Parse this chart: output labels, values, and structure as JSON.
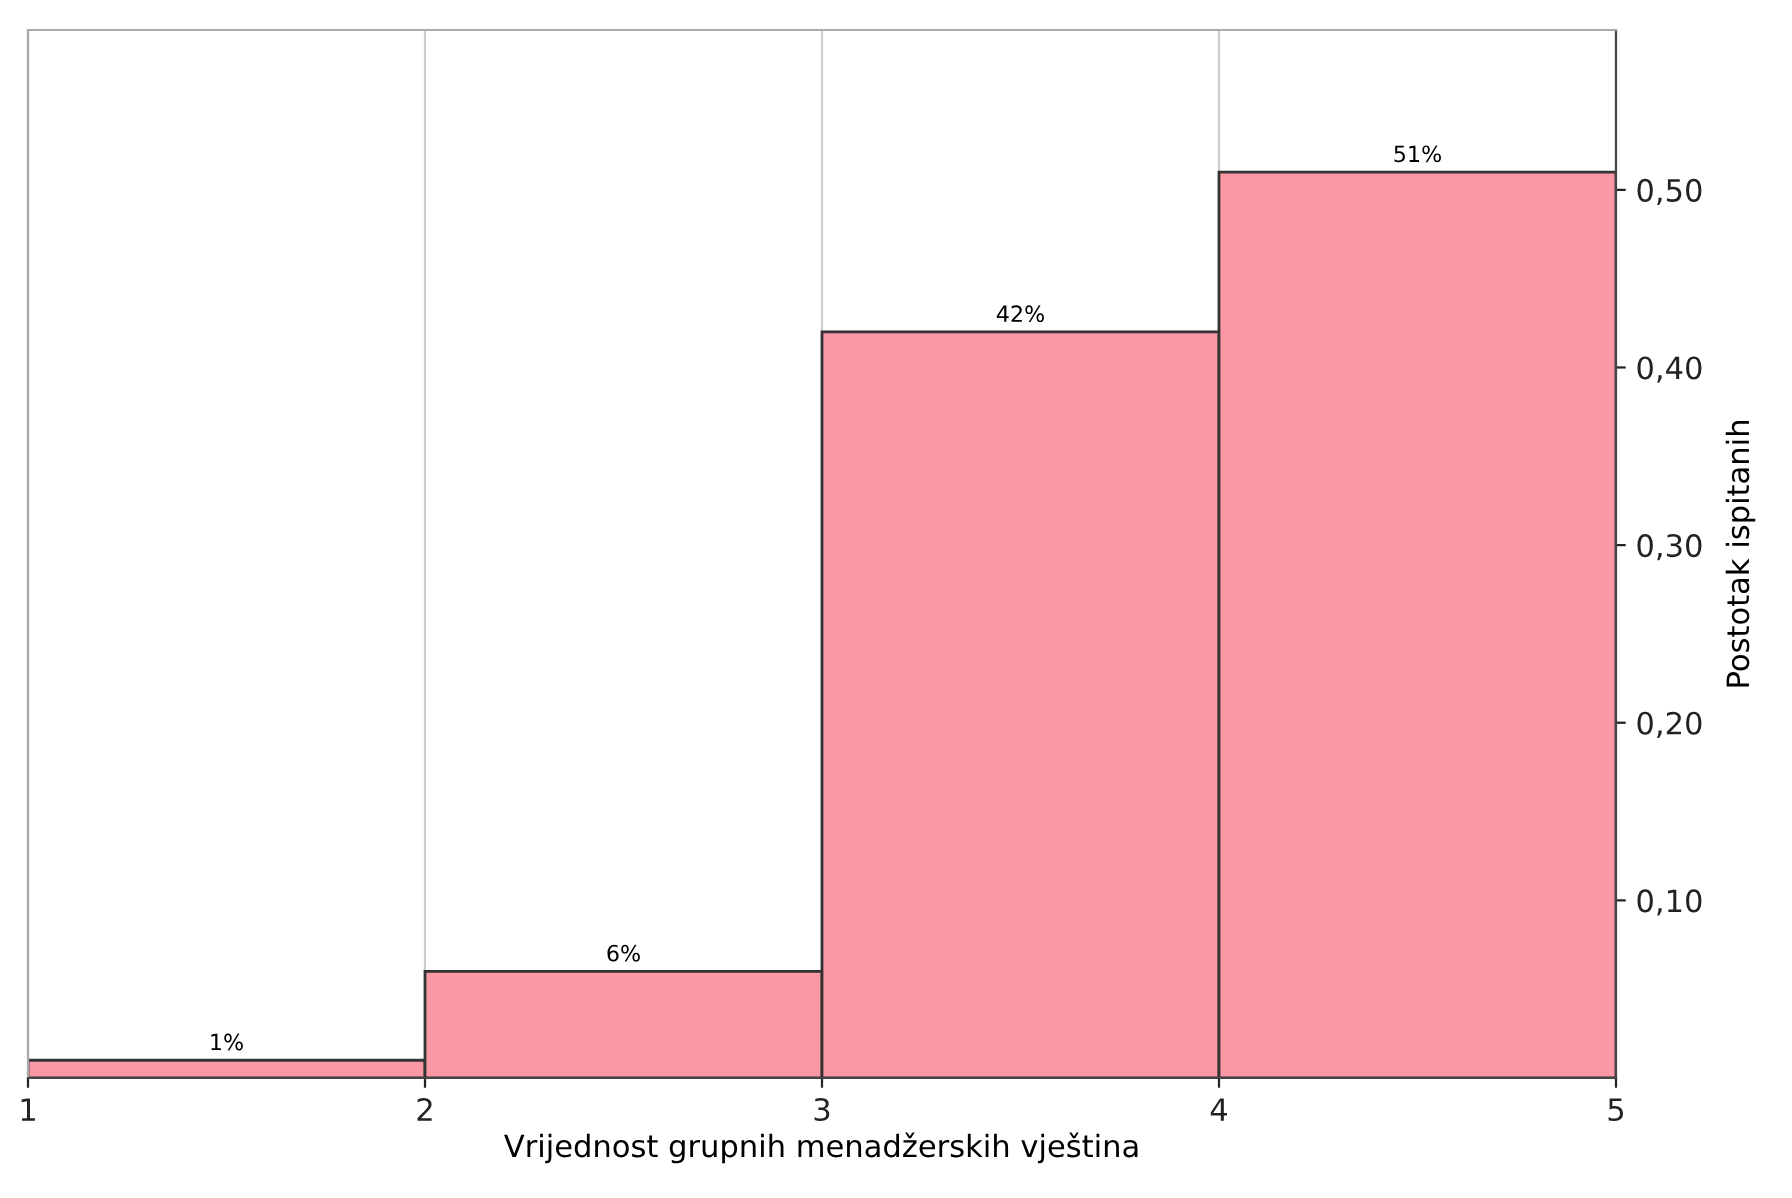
{
  "chart_data": {
    "type": "histogram",
    "xlabel": "Vrijednost grupnih menadžerskih vještina",
    "ylabel": "Postotak ispitanih",
    "bins": [
      1,
      2,
      3,
      4,
      5
    ],
    "values": [
      0.01,
      0.06,
      0.42,
      0.51
    ],
    "value_labels": [
      "1%",
      "6%",
      "42%",
      "51%"
    ],
    "color": "#fb98a6",
    "xlim": [
      1,
      5
    ],
    "ylim": [
      0,
      0.59
    ],
    "xticks": [
      1,
      2,
      3,
      4,
      5
    ],
    "yticks": [
      {
        "value": 0.1,
        "label": "0,10"
      },
      {
        "value": 0.2,
        "label": "0,20"
      },
      {
        "value": 0.3,
        "label": "0,30"
      },
      {
        "value": 0.4,
        "label": "0,40"
      },
      {
        "value": 0.5,
        "label": "0,50"
      }
    ],
    "grid": "x"
  }
}
